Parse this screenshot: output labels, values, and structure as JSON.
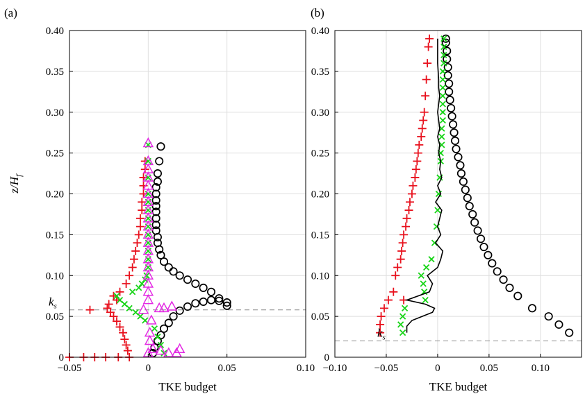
{
  "panel_labels": {
    "a": "(a)",
    "b": "(b)"
  },
  "ylabel": "z/H",
  "ylabel_sub": "f",
  "ks_label": "k",
  "ks_sub": "s",
  "chart_data": [
    {
      "type": "scatter",
      "panel": "(a)",
      "xlabel": "TKE budget",
      "ylabel": "z/H_f",
      "xlim": [
        -0.05,
        0.1
      ],
      "ylim": [
        0,
        0.4
      ],
      "xticks": [
        "−0.05",
        "0",
        "0.05",
        "0.10"
      ],
      "xtick_values": [
        -0.05,
        0,
        0.05,
        0.1
      ],
      "yticks": [
        "0",
        "0.05",
        "0.10",
        "0.15",
        "0.20",
        "0.25",
        "0.30",
        "0.35",
        "0.40"
      ],
      "ytick_values": [
        0,
        0.05,
        0.1,
        0.15,
        0.2,
        0.25,
        0.3,
        0.35,
        0.4
      ],
      "grid": true,
      "ks_line": 0.058,
      "series": [
        {
          "marker": "circle",
          "color": "#000000",
          "x": [
            0.003,
            0.004,
            0.006,
            0.008,
            0.01,
            0.013,
            0.016,
            0.02,
            0.025,
            0.03,
            0.035,
            0.04,
            0.045,
            0.05,
            0.05,
            0.045,
            0.04,
            0.035,
            0.03,
            0.025,
            0.02,
            0.016,
            0.013,
            0.01,
            0.008,
            0.007,
            0.006,
            0.006,
            0.005,
            0.005,
            0.005,
            0.005,
            0.005,
            0.005,
            0.005,
            0.005,
            0.006,
            0.006,
            0.007,
            0.008
          ],
          "y": [
            0.005,
            0.012,
            0.02,
            0.027,
            0.035,
            0.042,
            0.05,
            0.057,
            0.062,
            0.066,
            0.068,
            0.07,
            0.069,
            0.067,
            0.063,
            0.072,
            0.08,
            0.085,
            0.09,
            0.095,
            0.1,
            0.105,
            0.11,
            0.117,
            0.125,
            0.132,
            0.14,
            0.147,
            0.155,
            0.162,
            0.17,
            0.178,
            0.185,
            0.192,
            0.2,
            0.208,
            0.215,
            0.225,
            0.24,
            0.258
          ]
        },
        {
          "marker": "plus",
          "color": "#e8111d",
          "x": [
            -0.05,
            -0.041,
            -0.034,
            -0.027,
            -0.019,
            -0.012,
            -0.013,
            -0.014,
            -0.015,
            -0.016,
            -0.018,
            -0.02,
            -0.022,
            -0.024,
            -0.026,
            -0.025,
            -0.037,
            -0.02,
            -0.022,
            -0.018,
            -0.014,
            -0.012,
            -0.01,
            -0.009,
            -0.008,
            -0.007,
            -0.006,
            -0.005,
            -0.005,
            -0.004,
            -0.004,
            -0.003,
            -0.003,
            -0.003,
            -0.002,
            -0.002
          ],
          "y": [
            0.0,
            0.0,
            0.0,
            0.0,
            0.0,
            0.0,
            0.008,
            0.015,
            0.022,
            0.03,
            0.037,
            0.044,
            0.05,
            0.055,
            0.06,
            0.065,
            0.058,
            0.07,
            0.075,
            0.08,
            0.09,
            0.1,
            0.11,
            0.12,
            0.13,
            0.14,
            0.15,
            0.16,
            0.17,
            0.18,
            0.19,
            0.2,
            0.21,
            0.22,
            0.23,
            0.24
          ]
        },
        {
          "marker": "cross",
          "color": "#16d416",
          "x": [
            0.01,
            0.008,
            0.006,
            0.004,
            -0.002,
            -0.005,
            -0.008,
            -0.012,
            -0.015,
            -0.018,
            -0.02,
            -0.01,
            -0.006,
            -0.004,
            -0.002,
            -0.001,
            0.0,
            0.0,
            0.0,
            0.0,
            0.0,
            0.0,
            0.0,
            0.0,
            0.0,
            0.0,
            0.0,
            0.0,
            0.0
          ],
          "y": [
            0.005,
            0.015,
            0.025,
            0.035,
            0.045,
            0.05,
            0.055,
            0.06,
            0.065,
            0.07,
            0.075,
            0.08,
            0.085,
            0.09,
            0.095,
            0.1,
            0.11,
            0.12,
            0.13,
            0.14,
            0.15,
            0.16,
            0.17,
            0.18,
            0.19,
            0.2,
            0.22,
            0.24,
            0.26
          ]
        },
        {
          "marker": "triangle",
          "color": "#e329e3",
          "x": [
            0.0,
            0.003,
            0.008,
            0.013,
            0.02,
            0.018,
            0.001,
            0.001,
            0.002,
            0.01,
            0.015,
            0.007,
            -0.003,
            0.0,
            0.0,
            0.0,
            0.0,
            0.0,
            0.0,
            0.0,
            0.0,
            0.0,
            0.0,
            0.0,
            0.0,
            0.0,
            0.0,
            0.0,
            0.0,
            0.0,
            0.0,
            0.0
          ],
          "y": [
            0.005,
            0.01,
            0.008,
            0.005,
            0.01,
            0.005,
            0.02,
            0.03,
            0.045,
            0.06,
            0.062,
            0.06,
            0.058,
            0.07,
            0.08,
            0.09,
            0.1,
            0.11,
            0.12,
            0.13,
            0.14,
            0.15,
            0.16,
            0.17,
            0.18,
            0.19,
            0.2,
            0.21,
            0.22,
            0.23,
            0.24,
            0.262
          ]
        }
      ]
    },
    {
      "type": "scatter",
      "panel": "(b)",
      "xlabel": "TKE budget",
      "ylabel": "",
      "xlim": [
        -0.1,
        0.14
      ],
      "ylim": [
        0,
        0.4
      ],
      "xticks": [
        "−0.10",
        "−0.05",
        "0",
        "0.05",
        "0.10"
      ],
      "xtick_values": [
        -0.1,
        -0.05,
        0,
        0.05,
        0.1
      ],
      "yticks": [
        "0",
        "0.05",
        "0.10",
        "0.15",
        "0.20",
        "0.25",
        "0.30",
        "0.35",
        "0.40"
      ],
      "ytick_values": [
        0,
        0.05,
        0.1,
        0.15,
        0.2,
        0.25,
        0.3,
        0.35,
        0.4
      ],
      "grid": true,
      "ks_line": 0.02,
      "series": [
        {
          "marker": "circle",
          "color": "#000000",
          "x": [
            0.128,
            0.118,
            0.108,
            0.092,
            0.078,
            0.07,
            0.064,
            0.058,
            0.053,
            0.049,
            0.045,
            0.042,
            0.039,
            0.036,
            0.034,
            0.031,
            0.029,
            0.027,
            0.025,
            0.023,
            0.022,
            0.02,
            0.018,
            0.017,
            0.016,
            0.015,
            0.014,
            0.013,
            0.012,
            0.011,
            0.011,
            0.01,
            0.01,
            0.009,
            0.009,
            0.008,
            0.008
          ],
          "y": [
            0.03,
            0.04,
            0.05,
            0.06,
            0.075,
            0.085,
            0.095,
            0.105,
            0.115,
            0.125,
            0.135,
            0.145,
            0.155,
            0.165,
            0.175,
            0.185,
            0.195,
            0.205,
            0.215,
            0.225,
            0.235,
            0.245,
            0.255,
            0.265,
            0.275,
            0.285,
            0.295,
            0.305,
            0.315,
            0.325,
            0.335,
            0.345,
            0.355,
            0.365,
            0.375,
            0.385,
            0.39
          ]
        },
        {
          "marker": "plus",
          "color": "#e8111d",
          "x": [
            -0.056,
            -0.056,
            -0.055,
            -0.052,
            -0.048,
            -0.033,
            -0.043,
            -0.041,
            -0.039,
            -0.036,
            -0.035,
            -0.034,
            -0.033,
            -0.031,
            -0.03,
            -0.028,
            -0.027,
            -0.025,
            -0.024,
            -0.022,
            -0.021,
            -0.02,
            -0.019,
            -0.018,
            -0.016,
            -0.015,
            -0.014,
            -0.013,
            -0.012,
            -0.011,
            -0.01,
            -0.009,
            -0.008
          ],
          "y": [
            0.03,
            0.04,
            0.05,
            0.06,
            0.07,
            0.07,
            0.08,
            0.1,
            0.11,
            0.12,
            0.13,
            0.14,
            0.15,
            0.16,
            0.17,
            0.18,
            0.19,
            0.2,
            0.21,
            0.22,
            0.23,
            0.24,
            0.25,
            0.26,
            0.27,
            0.28,
            0.29,
            0.3,
            0.32,
            0.34,
            0.36,
            0.38,
            0.39
          ]
        },
        {
          "marker": "cross",
          "color": "#16d416",
          "x": [
            -0.034,
            -0.036,
            -0.034,
            -0.032,
            -0.012,
            -0.013,
            -0.014,
            -0.016,
            -0.011,
            -0.006,
            -0.003,
            -0.001,
            0.0,
            0.001,
            0.002,
            0.003,
            0.003,
            0.004,
            0.004,
            0.004,
            0.005,
            0.005,
            0.005,
            0.005,
            0.005,
            0.005,
            0.005,
            0.006,
            0.006,
            0.006,
            0.006
          ],
          "y": [
            0.03,
            0.04,
            0.05,
            0.06,
            0.07,
            0.08,
            0.09,
            0.1,
            0.11,
            0.12,
            0.14,
            0.16,
            0.18,
            0.2,
            0.22,
            0.24,
            0.25,
            0.26,
            0.27,
            0.28,
            0.29,
            0.3,
            0.31,
            0.32,
            0.33,
            0.34,
            0.35,
            0.36,
            0.37,
            0.38,
            0.39
          ]
        },
        {
          "marker": "line",
          "color": "#000000",
          "x": [
            -0.03,
            -0.03,
            -0.025,
            -0.015,
            -0.005,
            -0.003,
            -0.012,
            -0.03,
            -0.008,
            -0.005,
            -0.01,
            0.0,
            0.003,
            0.005,
            -0.002,
            0.003,
            0.0,
            0.002,
            0.004,
            -0.002,
            0.003,
            0.0,
            0.004,
            0.002,
            0.003,
            0.001,
            0.002,
            0.0,
            0.002,
            0.001,
            0.0,
            0.001,
            0.002,
            0.001,
            0.001,
            0.0,
            0.0
          ],
          "y": [
            0.03,
            0.038,
            0.045,
            0.05,
            0.055,
            0.06,
            0.065,
            0.07,
            0.08,
            0.09,
            0.1,
            0.11,
            0.12,
            0.13,
            0.14,
            0.15,
            0.16,
            0.17,
            0.18,
            0.19,
            0.2,
            0.21,
            0.22,
            0.23,
            0.24,
            0.25,
            0.26,
            0.27,
            0.28,
            0.29,
            0.3,
            0.31,
            0.32,
            0.33,
            0.34,
            0.36,
            0.39
          ]
        }
      ]
    }
  ]
}
